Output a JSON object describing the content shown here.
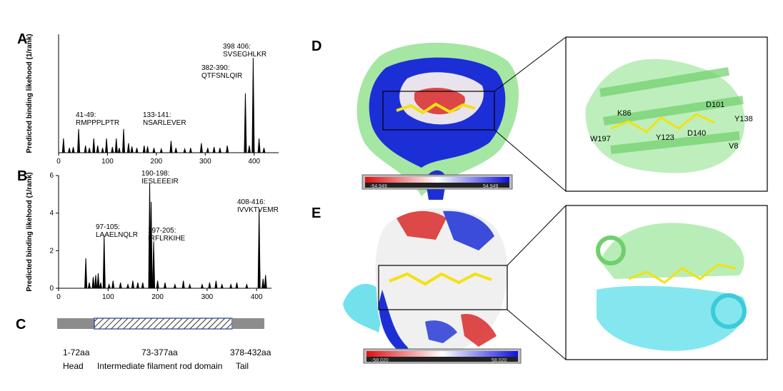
{
  "panels": {
    "A": "A",
    "B": "B",
    "C": "C",
    "D": "D",
    "E": "E"
  },
  "chart_data": [
    {
      "panel": "A",
      "type": "line",
      "title": "",
      "xlabel": "",
      "ylabel": "Predicted binding likehood (1/rank)",
      "xlim": [
        0,
        450
      ],
      "xticks": [
        0,
        100,
        200,
        300,
        400
      ],
      "ylim": [
        0,
        25
      ],
      "grid": false,
      "peaks": [
        {
          "x": 10,
          "y": 3
        },
        {
          "x": 22,
          "y": 1
        },
        {
          "x": 30,
          "y": 1.2
        },
        {
          "x": 41,
          "y": 5
        },
        {
          "x": 55,
          "y": 1.5
        },
        {
          "x": 63,
          "y": 1
        },
        {
          "x": 72,
          "y": 3
        },
        {
          "x": 80,
          "y": 1.5
        },
        {
          "x": 90,
          "y": 1
        },
        {
          "x": 98,
          "y": 3
        },
        {
          "x": 110,
          "y": 1.2
        },
        {
          "x": 118,
          "y": 3
        },
        {
          "x": 124,
          "y": 1
        },
        {
          "x": 133,
          "y": 5
        },
        {
          "x": 143,
          "y": 2
        },
        {
          "x": 150,
          "y": 1.3
        },
        {
          "x": 160,
          "y": 1
        },
        {
          "x": 175,
          "y": 1.5
        },
        {
          "x": 182,
          "y": 1.3
        },
        {
          "x": 195,
          "y": 1
        },
        {
          "x": 210,
          "y": 0.8
        },
        {
          "x": 230,
          "y": 2.5
        },
        {
          "x": 240,
          "y": 1
        },
        {
          "x": 258,
          "y": 0.8
        },
        {
          "x": 270,
          "y": 1
        },
        {
          "x": 292,
          "y": 2
        },
        {
          "x": 305,
          "y": 1
        },
        {
          "x": 318,
          "y": 1.2
        },
        {
          "x": 330,
          "y": 1
        },
        {
          "x": 345,
          "y": 1.5
        },
        {
          "x": 382,
          "y": 12.5
        },
        {
          "x": 390,
          "y": 1.5
        },
        {
          "x": 398,
          "y": 20
        },
        {
          "x": 410,
          "y": 3
        },
        {
          "x": 420,
          "y": 1
        }
      ],
      "annotations": [
        {
          "x": 41,
          "y": 5,
          "text": [
            "41-49:",
            "RMPPPLPTR"
          ]
        },
        {
          "x": 133,
          "y": 5,
          "text": [
            "133-141:",
            "NSARLEVER"
          ]
        },
        {
          "x": 382,
          "y": 12.5,
          "text": [
            "382-390:",
            "QTFSNLQIR"
          ]
        },
        {
          "x": 398,
          "y": 20,
          "text": [
            "398 406:",
            "SVSEGHLKR"
          ]
        }
      ]
    },
    {
      "panel": "B",
      "type": "line",
      "title": "",
      "xlabel": "",
      "ylabel": "Predicted binding likehood (1/rank)",
      "xlim": [
        0,
        430
      ],
      "xticks": [
        0,
        100,
        200,
        300,
        400
      ],
      "ylim": [
        0,
        6
      ],
      "yticks": [
        0,
        2,
        4,
        6
      ],
      "grid": false,
      "peaks": [
        {
          "x": 55,
          "y": 1.6
        },
        {
          "x": 62,
          "y": 0.3
        },
        {
          "x": 70,
          "y": 0.6
        },
        {
          "x": 75,
          "y": 0.7
        },
        {
          "x": 80,
          "y": 0.8
        },
        {
          "x": 85,
          "y": 0.3
        },
        {
          "x": 92,
          "y": 2.8
        },
        {
          "x": 102,
          "y": 0.2
        },
        {
          "x": 110,
          "y": 0.4
        },
        {
          "x": 125,
          "y": 0.3
        },
        {
          "x": 140,
          "y": 0.2
        },
        {
          "x": 150,
          "y": 0.4
        },
        {
          "x": 160,
          "y": 0.3
        },
        {
          "x": 170,
          "y": 0.3
        },
        {
          "x": 184,
          "y": 5.6
        },
        {
          "x": 187,
          "y": 4.6
        },
        {
          "x": 192,
          "y": 2.5
        },
        {
          "x": 200,
          "y": 0.4
        },
        {
          "x": 215,
          "y": 0.3
        },
        {
          "x": 235,
          "y": 0.2
        },
        {
          "x": 252,
          "y": 0.4
        },
        {
          "x": 265,
          "y": 0.2
        },
        {
          "x": 290,
          "y": 0.2
        },
        {
          "x": 305,
          "y": 0.3
        },
        {
          "x": 318,
          "y": 0.4
        },
        {
          "x": 330,
          "y": 0.2
        },
        {
          "x": 348,
          "y": 0.2
        },
        {
          "x": 360,
          "y": 0.3
        },
        {
          "x": 380,
          "y": 0.2
        },
        {
          "x": 405,
          "y": 4.2
        },
        {
          "x": 413,
          "y": 0.5
        },
        {
          "x": 418,
          "y": 0.7
        }
      ],
      "annotations": [
        {
          "x": 92,
          "y": 2.8,
          "text": [
            "97-105:",
            "LAAELNQLR"
          ]
        },
        {
          "x": 184,
          "y": 5.6,
          "text": [
            "190-198:",
            "IESLEEEIR"
          ]
        },
        {
          "x": 192,
          "y": 2.5,
          "text": [
            "197-205:",
            "IRFLRKIHE"
          ]
        },
        {
          "x": 405,
          "y": 4.2,
          "text": [
            "408-416:",
            "IVVKTVEMR"
          ]
        }
      ]
    }
  ],
  "domain_map": {
    "segments": [
      {
        "start": 1,
        "end": 72,
        "range": "1-72aa",
        "name": "Head"
      },
      {
        "start": 73,
        "end": 377,
        "range": "73-377aa",
        "name": "Intermediate filament rod domain"
      },
      {
        "start": 378,
        "end": 432,
        "range": "378-432aa",
        "name": "Tail"
      }
    ]
  },
  "panel_D": {
    "colorbar_min": "-54.949",
    "colorbar_max": "54.949",
    "residues": [
      "K86",
      "W197",
      "Y123",
      "D140",
      "D101",
      "Y138",
      "V8"
    ]
  },
  "panel_E": {
    "colorbar_min": "-58.020",
    "colorbar_max": "58.020"
  },
  "colors": {
    "surface_red": "#d92a2a",
    "surface_blue": "#1c2fd6",
    "protein_green": "#8fe08c",
    "protein_cyan": "#4fd9e6",
    "ligand_yellow": "#f2e20f",
    "rod_fill": "#1f3f8c"
  }
}
